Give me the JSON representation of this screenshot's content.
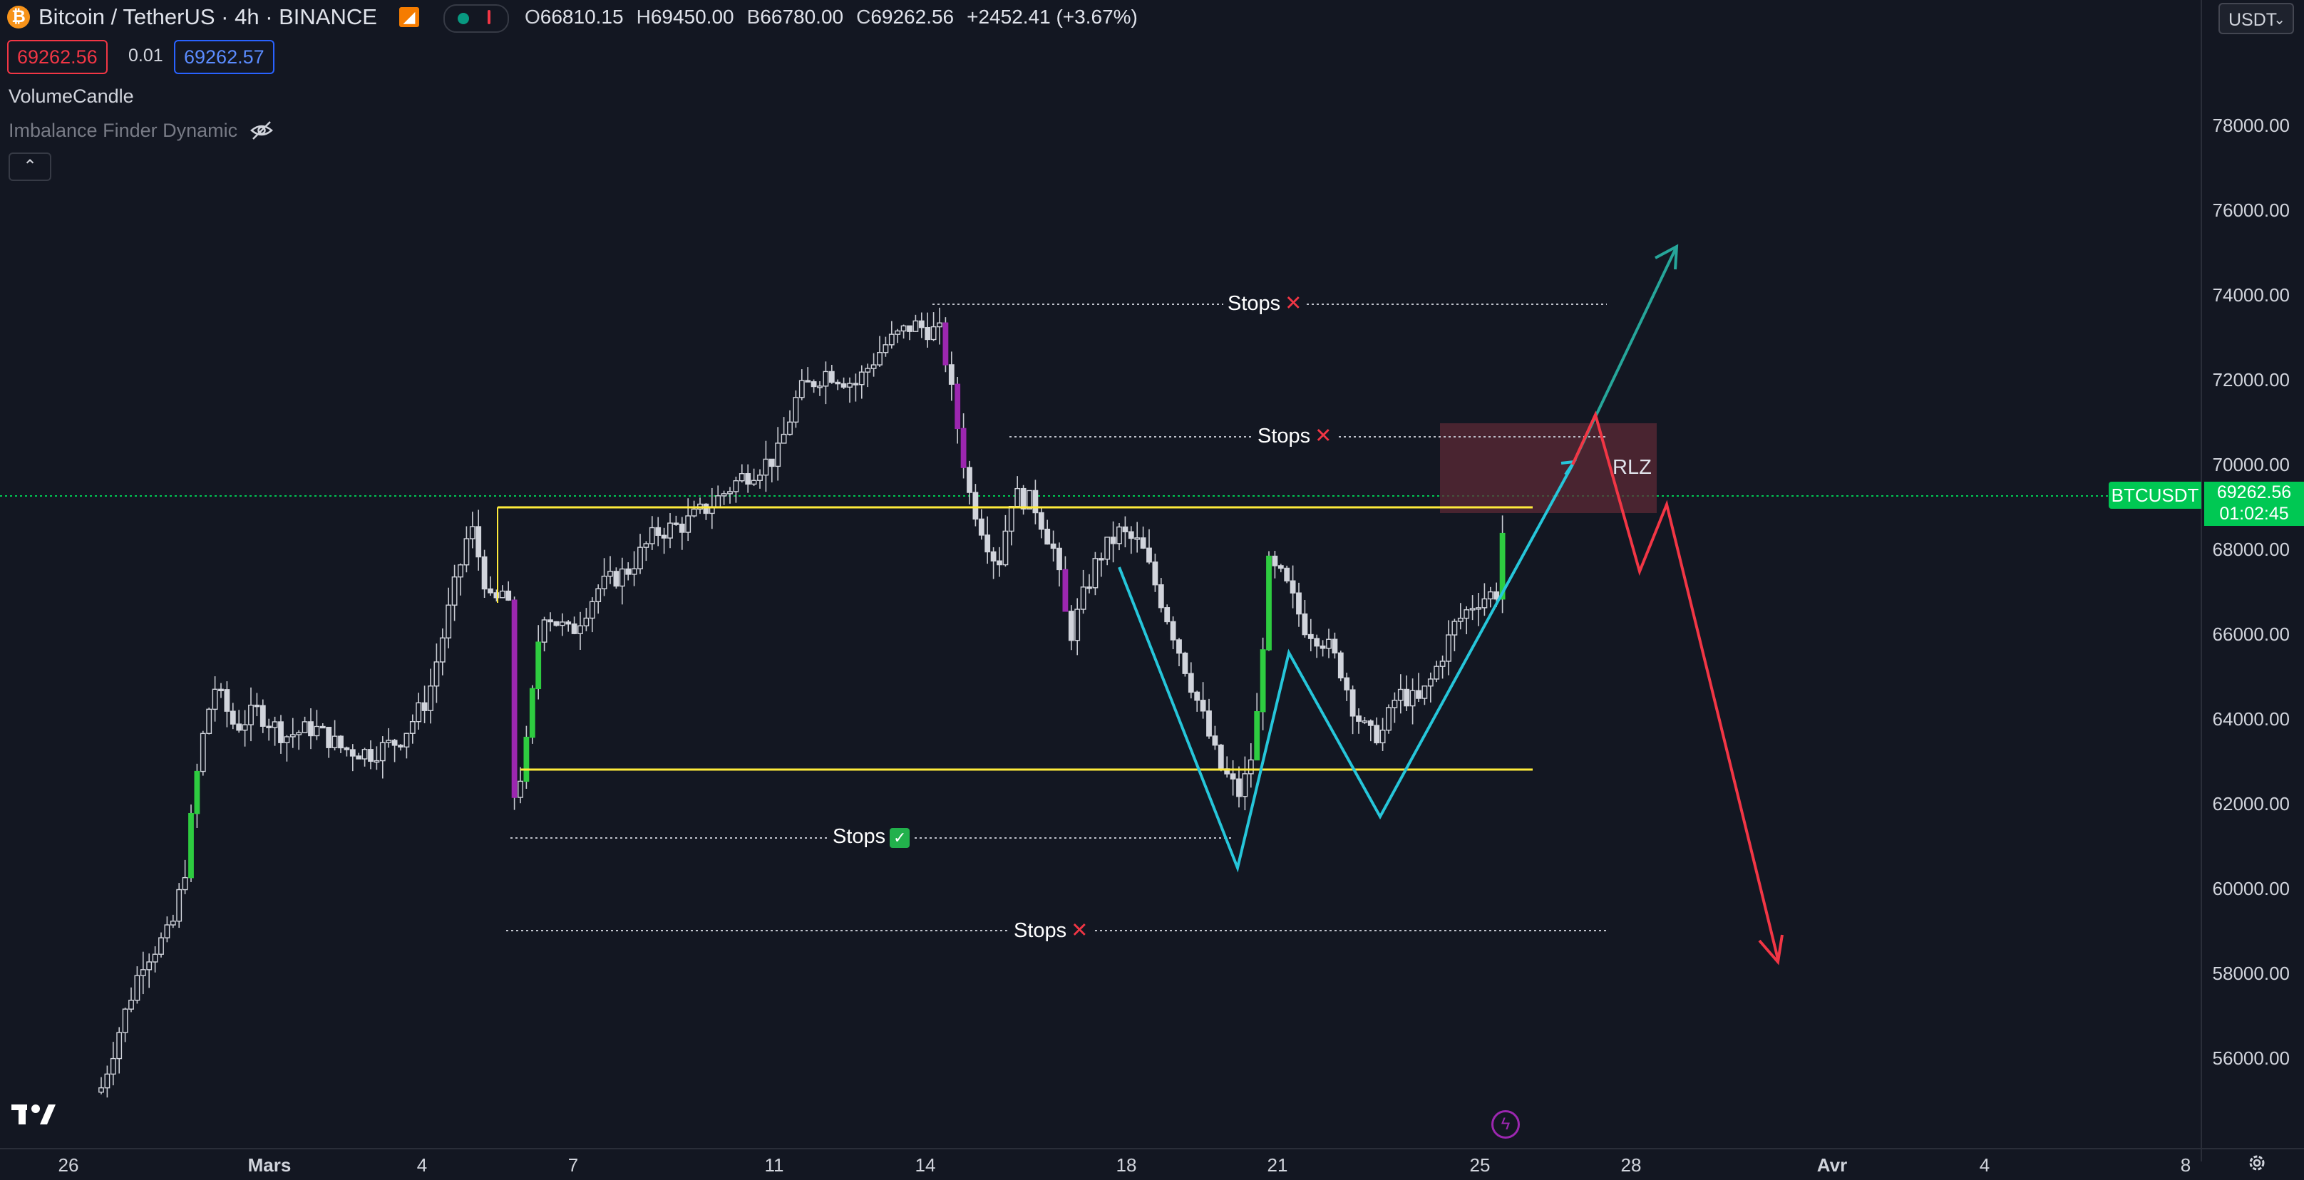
{
  "header": {
    "symbol_title": "Bitcoin / TetherUS · 4h · BINANCE",
    "ohlc": {
      "o_label": "O",
      "o_value": "66810.15",
      "h_label": "H",
      "h_value": "69450.00",
      "l_label": "B",
      "l_value": "66780.00",
      "c_label": "C",
      "c_value": "69262.56",
      "change": "+2452.41 (+3.67%)"
    },
    "sell_price": "69262.56",
    "spread": "0.01",
    "buy_price": "69262.57",
    "currency": "USDT"
  },
  "indicators": {
    "volume_candle": "VolumeCandle",
    "imbalance": "Imbalance Finder Dynamic",
    "collapse_icon": "chevron-up-icon"
  },
  "price_tag": {
    "symbol": "BTCUSDT",
    "price": "69262.56",
    "countdown": "01:02:45"
  },
  "annotations": {
    "rlz": "RLZ",
    "stops_top": "Stops",
    "stops_mid": "Stops",
    "stops_low": "Stops",
    "stops_bottom": "Stops"
  },
  "colors": {
    "background": "#131722",
    "bull": "#2ecc40",
    "bear": "#9c27b0",
    "level_line": "#ffeb3b",
    "bounce_path": "#26c6da",
    "bull_scenario": "#26a69a",
    "bear_scenario": "#f23645",
    "zone": "#5c2a35",
    "last_price": "#00c853"
  },
  "chart_data": {
    "type": "candlestick",
    "y_ticks": [
      "56000.00",
      "58000.00",
      "60000.00",
      "62000.00",
      "64000.00",
      "66000.00",
      "68000.00",
      "70000.00",
      "72000.00",
      "74000.00",
      "76000.00",
      "78000.00"
    ],
    "x_ticks": [
      "26",
      "Mars",
      "4",
      "7",
      "11",
      "14",
      "18",
      "21",
      "25",
      "28",
      "Avr",
      "4",
      "8"
    ],
    "ylim": [
      54500,
      80000
    ],
    "last_price": 69262.56,
    "levels": {
      "range_high": 69050,
      "range_low": 62850,
      "stops_top": 73800,
      "stops_mid": 70700,
      "stops_low": 61200,
      "stops_bottom": 59000
    },
    "zone": {
      "low": 68800,
      "high": 71000
    }
  },
  "icons": {
    "coin": "bitcoin-icon",
    "flash": "lightning-icon",
    "settings": "gear-icon",
    "logo": "tradingview-logo"
  }
}
